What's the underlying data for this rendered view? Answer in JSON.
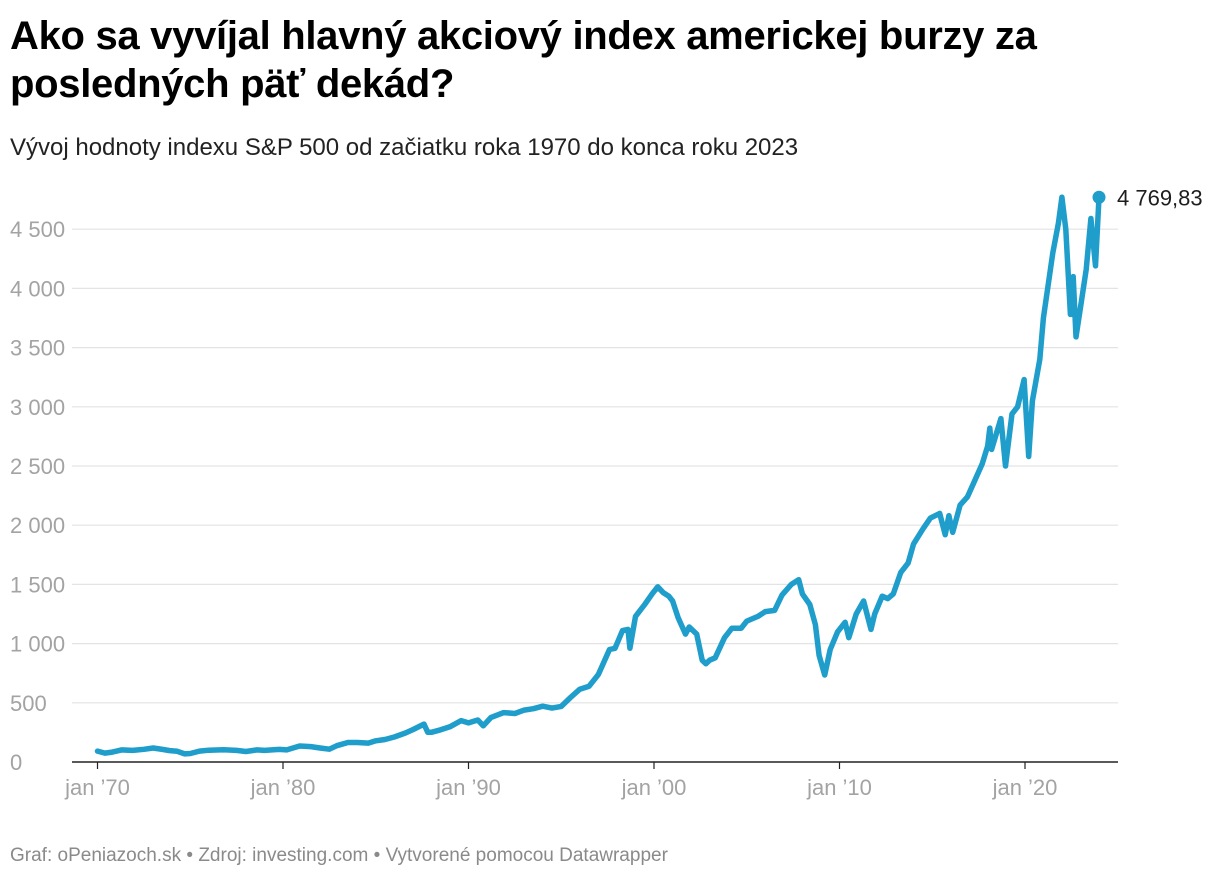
{
  "header": {
    "title": "Ako sa vyvíjal hlavný akciový index americkej burzy za posledných päť dekád?",
    "subtitle": "Vývoj hodnoty indexu S&P 500 od začiatku roka 1970 do konca roku 2023"
  },
  "footer": {
    "graf_label": "Graf:",
    "graf_value": "oPeniazoch.sk",
    "source_label": "Zdroj:",
    "source_value": "investing.com",
    "tool": "Vytvorené pomocou Datawrapper",
    "separator": "•"
  },
  "colors": {
    "line": "#1f9dcb",
    "grid": "#e3e3e3",
    "axis": "#222222",
    "tick_text": "#a3a3a3",
    "label_text": "#1d1d1d"
  },
  "chart_data": {
    "type": "line",
    "title": "Ako sa vyvíjal hlavný akciový index americkej burzy za posledných päť dekád?",
    "subtitle": "Vývoj hodnoty indexu S&P 500 od začiatku roka 1970 do konca roku 2023",
    "xlabel": "",
    "ylabel": "",
    "xlim": [
      1970.0,
      2024.0
    ],
    "ylim": [
      0,
      4800
    ],
    "grid": true,
    "legend": "none",
    "y_ticks": [
      {
        "value": 0,
        "label": "0"
      },
      {
        "value": 500,
        "label": "500"
      },
      {
        "value": 1000,
        "label": "1 000"
      },
      {
        "value": 1500,
        "label": "1 500"
      },
      {
        "value": 2000,
        "label": "2 000"
      },
      {
        "value": 2500,
        "label": "2 500"
      },
      {
        "value": 3000,
        "label": "3 000"
      },
      {
        "value": 3500,
        "label": "3 500"
      },
      {
        "value": 4000,
        "label": "4 000"
      },
      {
        "value": 4500,
        "label": "4 500"
      }
    ],
    "x_ticks": [
      {
        "value": 1970,
        "label": "jan ’70"
      },
      {
        "value": 1980,
        "label": "jan ’80"
      },
      {
        "value": 1990,
        "label": "jan ’90"
      },
      {
        "value": 2000,
        "label": "jan ’00"
      },
      {
        "value": 2010,
        "label": "jan ’10"
      },
      {
        "value": 2020,
        "label": "jan ’20"
      }
    ],
    "end_label": "4 769,83",
    "series": [
      {
        "name": "S&P 500",
        "points": [
          [
            1970.0,
            92
          ],
          [
            1970.4,
            75
          ],
          [
            1970.8,
            84
          ],
          [
            1971.3,
            102
          ],
          [
            1971.9,
            98
          ],
          [
            1972.5,
            107
          ],
          [
            1973.0,
            118
          ],
          [
            1973.5,
            106
          ],
          [
            1973.9,
            96
          ],
          [
            1974.3,
            90
          ],
          [
            1974.7,
            68
          ],
          [
            1975.0,
            72
          ],
          [
            1975.5,
            92
          ],
          [
            1976.0,
            100
          ],
          [
            1976.8,
            103
          ],
          [
            1977.5,
            98
          ],
          [
            1978.0,
            89
          ],
          [
            1978.6,
            102
          ],
          [
            1979.0,
            98
          ],
          [
            1979.8,
            106
          ],
          [
            1980.2,
            102
          ],
          [
            1980.9,
            135
          ],
          [
            1981.5,
            130
          ],
          [
            1982.0,
            118
          ],
          [
            1982.5,
            108
          ],
          [
            1982.9,
            138
          ],
          [
            1983.5,
            165
          ],
          [
            1984.0,
            165
          ],
          [
            1984.6,
            160
          ],
          [
            1985.0,
            179
          ],
          [
            1985.5,
            190
          ],
          [
            1986.0,
            211
          ],
          [
            1986.6,
            245
          ],
          [
            1987.0,
            274
          ],
          [
            1987.6,
            320
          ],
          [
            1987.8,
            252
          ],
          [
            1988.0,
            251
          ],
          [
            1988.5,
            272
          ],
          [
            1989.0,
            297
          ],
          [
            1989.6,
            350
          ],
          [
            1990.0,
            330
          ],
          [
            1990.5,
            355
          ],
          [
            1990.8,
            306
          ],
          [
            1991.2,
            375
          ],
          [
            1991.9,
            417
          ],
          [
            1992.5,
            410
          ],
          [
            1993.0,
            438
          ],
          [
            1993.5,
            450
          ],
          [
            1994.0,
            471
          ],
          [
            1994.5,
            455
          ],
          [
            1995.0,
            470
          ],
          [
            1995.5,
            545
          ],
          [
            1996.0,
            615
          ],
          [
            1996.5,
            640
          ],
          [
            1997.0,
            740
          ],
          [
            1997.6,
            950
          ],
          [
            1997.9,
            960
          ],
          [
            1998.3,
            1110
          ],
          [
            1998.6,
            1120
          ],
          [
            1998.7,
            960
          ],
          [
            1999.0,
            1230
          ],
          [
            1999.5,
            1330
          ],
          [
            1999.9,
            1420
          ],
          [
            2000.2,
            1480
          ],
          [
            2000.5,
            1430
          ],
          [
            2000.8,
            1400
          ],
          [
            2001.0,
            1360
          ],
          [
            2001.3,
            1220
          ],
          [
            2001.7,
            1080
          ],
          [
            2001.9,
            1140
          ],
          [
            2002.3,
            1080
          ],
          [
            2002.6,
            860
          ],
          [
            2002.8,
            830
          ],
          [
            2003.0,
            860
          ],
          [
            2003.3,
            880
          ],
          [
            2003.8,
            1050
          ],
          [
            2004.2,
            1130
          ],
          [
            2004.7,
            1130
          ],
          [
            2005.0,
            1190
          ],
          [
            2005.6,
            1230
          ],
          [
            2006.0,
            1270
          ],
          [
            2006.5,
            1280
          ],
          [
            2006.9,
            1410
          ],
          [
            2007.4,
            1500
          ],
          [
            2007.8,
            1540
          ],
          [
            2008.0,
            1420
          ],
          [
            2008.4,
            1330
          ],
          [
            2008.7,
            1160
          ],
          [
            2008.9,
            900
          ],
          [
            2009.2,
            735
          ],
          [
            2009.5,
            950
          ],
          [
            2009.9,
            1100
          ],
          [
            2010.3,
            1180
          ],
          [
            2010.5,
            1050
          ],
          [
            2010.9,
            1250
          ],
          [
            2011.3,
            1360
          ],
          [
            2011.7,
            1120
          ],
          [
            2011.9,
            1250
          ],
          [
            2012.3,
            1400
          ],
          [
            2012.6,
            1380
          ],
          [
            2012.9,
            1420
          ],
          [
            2013.3,
            1600
          ],
          [
            2013.7,
            1680
          ],
          [
            2013.99,
            1840
          ],
          [
            2014.5,
            1970
          ],
          [
            2014.9,
            2060
          ],
          [
            2015.4,
            2100
          ],
          [
            2015.7,
            1920
          ],
          [
            2015.9,
            2080
          ],
          [
            2016.1,
            1940
          ],
          [
            2016.5,
            2170
          ],
          [
            2016.9,
            2240
          ],
          [
            2017.3,
            2380
          ],
          [
            2017.7,
            2520
          ],
          [
            2017.99,
            2670
          ],
          [
            2018.1,
            2820
          ],
          [
            2018.2,
            2640
          ],
          [
            2018.7,
            2900
          ],
          [
            2018.95,
            2500
          ],
          [
            2019.3,
            2940
          ],
          [
            2019.6,
            3000
          ],
          [
            2019.95,
            3230
          ],
          [
            2020.2,
            2580
          ],
          [
            2020.4,
            3050
          ],
          [
            2020.8,
            3400
          ],
          [
            2020.99,
            3750
          ],
          [
            2021.5,
            4300
          ],
          [
            2021.8,
            4550
          ],
          [
            2021.99,
            4770
          ],
          [
            2022.2,
            4500
          ],
          [
            2022.45,
            3780
          ],
          [
            2022.6,
            4100
          ],
          [
            2022.75,
            3590
          ],
          [
            2022.99,
            3840
          ],
          [
            2023.3,
            4160
          ],
          [
            2023.55,
            4590
          ],
          [
            2023.8,
            4190
          ],
          [
            2023.99,
            4769.83
          ]
        ]
      }
    ]
  }
}
